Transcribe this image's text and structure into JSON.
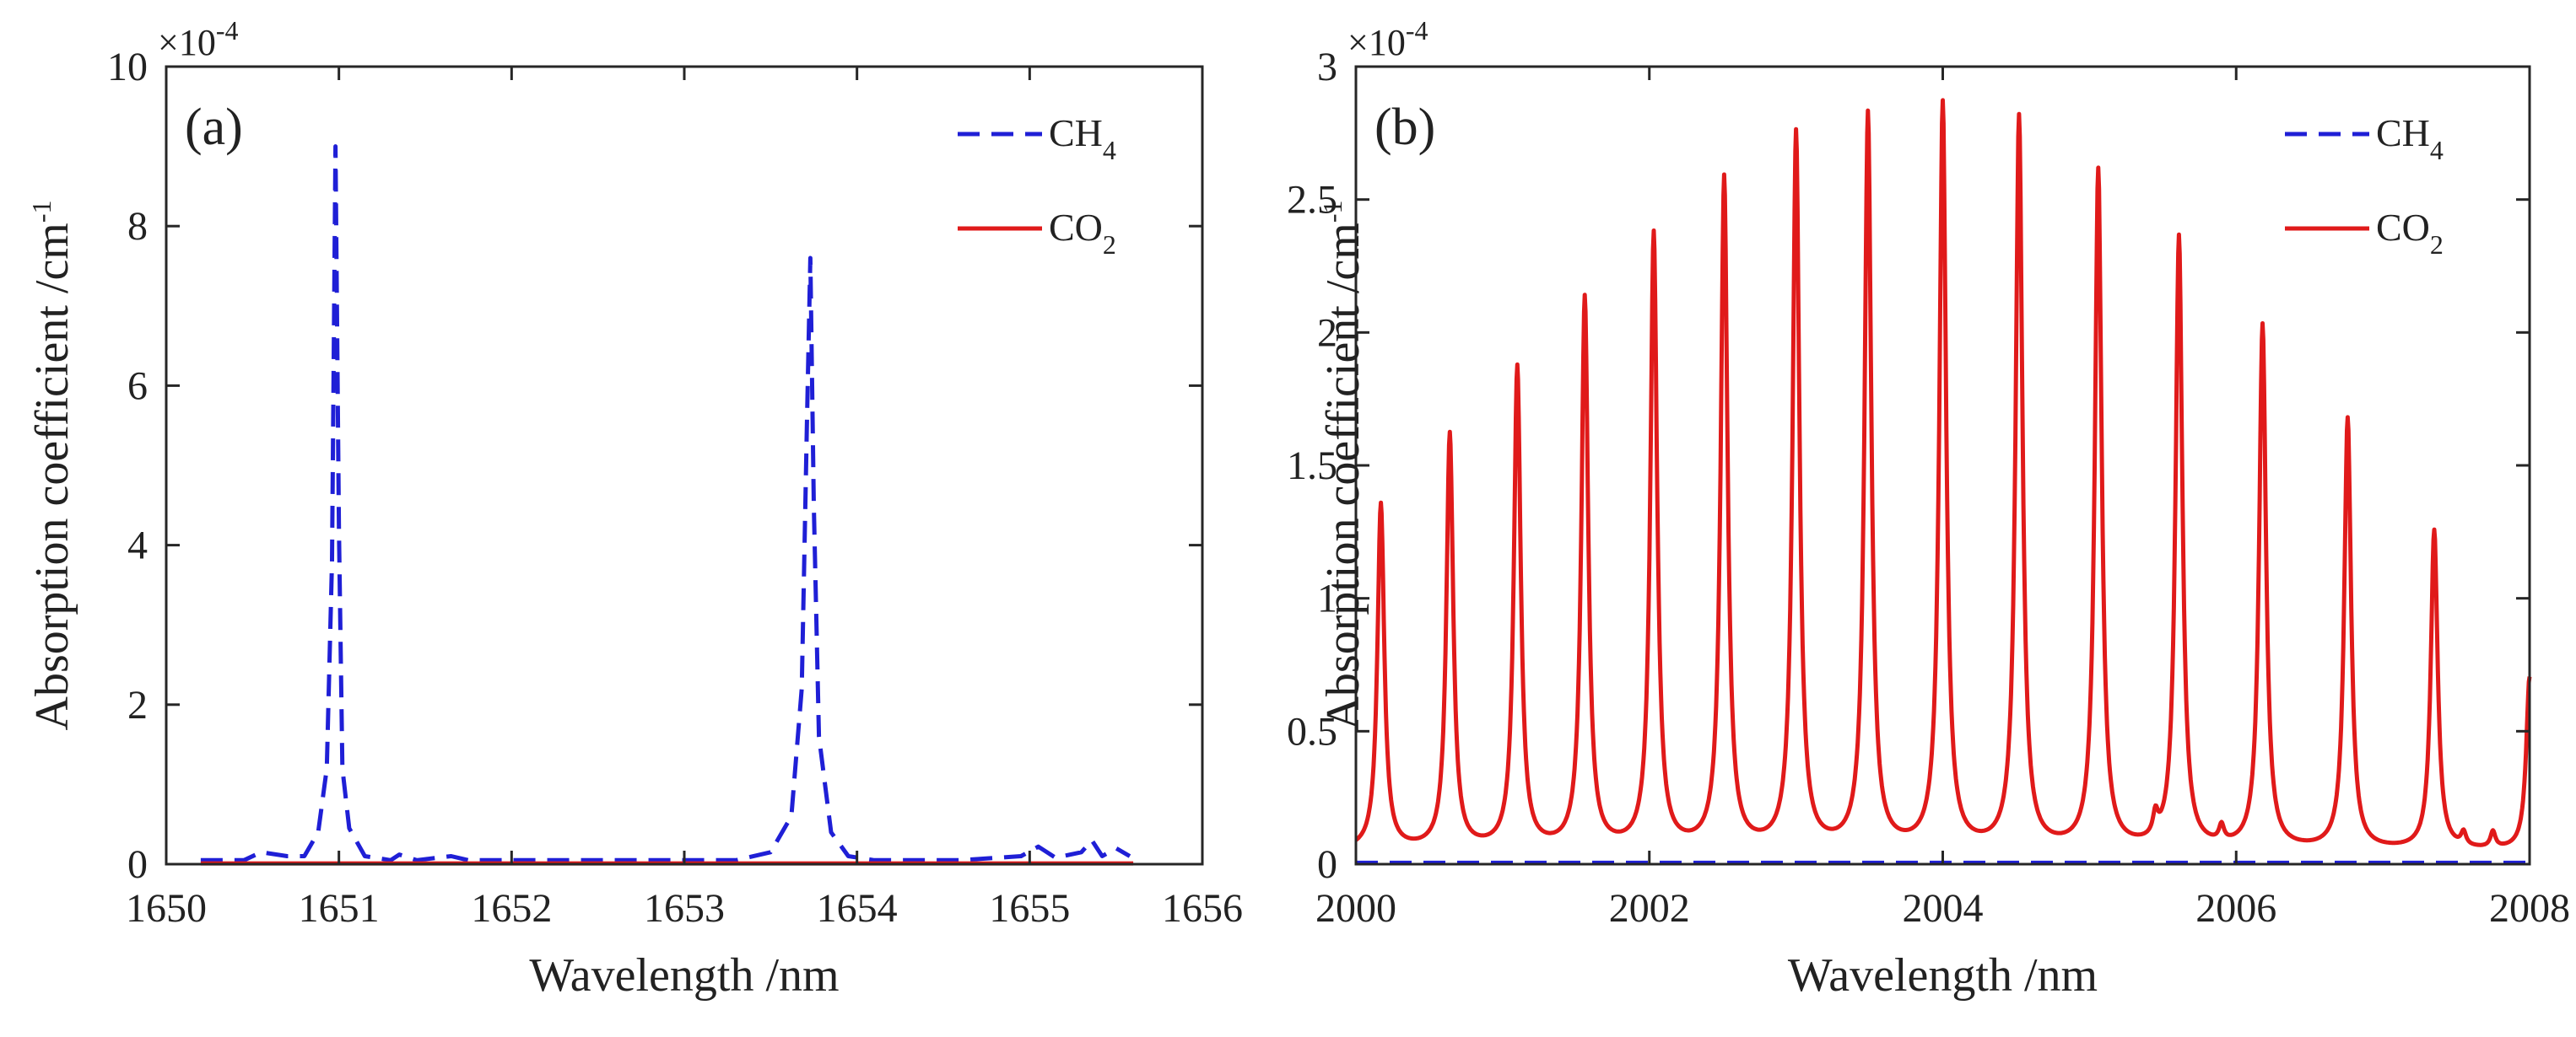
{
  "chart_data": [
    {
      "type": "line",
      "panel_label": "(a)",
      "title": "",
      "xlabel": "Wavelength /nm",
      "ylabel": "Absorption coefficient /cm",
      "ylabel_sup": "-1",
      "y_scale_text": "×10",
      "y_scale_exp": "-4",
      "xlim": [
        1650,
        1656
      ],
      "ylim": [
        0,
        10
      ],
      "xticks": [
        "1650",
        "1651",
        "1652",
        "1653",
        "1654",
        "1655",
        "1656"
      ],
      "yticks": [
        "0",
        "2",
        "4",
        "6",
        "8",
        "10"
      ],
      "legend_location": "top-right",
      "series": [
        {
          "name": "CH4",
          "legend_main": "CH",
          "legend_sub": "4",
          "color": "#1f1fd6",
          "dash": "dashed",
          "x": [
            1650.2,
            1650.45,
            1650.55,
            1650.7,
            1650.8,
            1650.88,
            1650.93,
            1650.96,
            1650.98,
            1651.0,
            1651.02,
            1651.06,
            1651.15,
            1651.3,
            1651.35,
            1651.45,
            1651.65,
            1651.75,
            1652.0,
            1653.3,
            1653.5,
            1653.62,
            1653.68,
            1653.71,
            1653.73,
            1653.75,
            1653.78,
            1653.85,
            1653.95,
            1654.1,
            1654.6,
            1654.95,
            1655.05,
            1655.15,
            1655.3,
            1655.36,
            1655.42,
            1655.5,
            1655.58
          ],
          "values": [
            0.05,
            0.05,
            0.15,
            0.1,
            0.1,
            0.4,
            1.2,
            3.8,
            9.0,
            4.2,
            1.2,
            0.45,
            0.1,
            0.05,
            0.12,
            0.05,
            0.1,
            0.05,
            0.05,
            0.05,
            0.15,
            0.6,
            2.2,
            5.5,
            7.6,
            4.5,
            1.6,
            0.4,
            0.1,
            0.05,
            0.05,
            0.1,
            0.22,
            0.08,
            0.15,
            0.3,
            0.1,
            0.2,
            0.1
          ]
        },
        {
          "name": "CO2",
          "legend_main": "CO",
          "legend_sub": "2",
          "color": "#e01a1a",
          "dash": "solid",
          "x": [
            1650.2,
            1655.6
          ],
          "values": [
            0.01,
            0.01
          ]
        }
      ]
    },
    {
      "type": "line",
      "panel_label": "(b)",
      "title": "",
      "xlabel": "Wavelength /nm",
      "ylabel": "Absorption coefficient /cm",
      "ylabel_sup": "-1",
      "y_scale_text": "×10",
      "y_scale_exp": "-4",
      "xlim": [
        2000,
        2008
      ],
      "ylim": [
        0,
        3
      ],
      "xticks": [
        "2000",
        "2002",
        "2004",
        "2006",
        "2008"
      ],
      "yticks": [
        "0",
        "0.5",
        "1",
        "1.5",
        "2",
        "2.5",
        "3"
      ],
      "legend_location": "top-right",
      "co2_peaks": {
        "positions": [
          2000.17,
          2000.64,
          2001.1,
          2001.56,
          2002.03,
          2002.51,
          2003.0,
          2003.49,
          2004.0,
          2004.52,
          2005.06,
          2005.61,
          2006.18,
          2006.76,
          2007.35,
          2008.0
        ],
        "heights": [
          1.35,
          1.61,
          1.86,
          2.12,
          2.36,
          2.57,
          2.74,
          2.81,
          2.85,
          2.8,
          2.6,
          2.35,
          2.02,
          1.67,
          1.25,
          0.7
        ],
        "baseline": 0.05,
        "minor_bumps": [
          [
            2005.45,
            0.08
          ],
          [
            2005.9,
            0.06
          ],
          [
            2007.55,
            0.05
          ],
          [
            2007.75,
            0.06
          ]
        ]
      },
      "series": [
        {
          "name": "CH4",
          "legend_main": "CH",
          "legend_sub": "4",
          "color": "#1f1fd6",
          "dash": "dashed",
          "x": [
            2000,
            2008
          ],
          "values": [
            0.005,
            0.005
          ]
        },
        {
          "name": "CO2",
          "legend_main": "CO",
          "legend_sub": "2",
          "color": "#e01a1a",
          "dash": "solid",
          "x": [],
          "values": []
        }
      ]
    }
  ]
}
